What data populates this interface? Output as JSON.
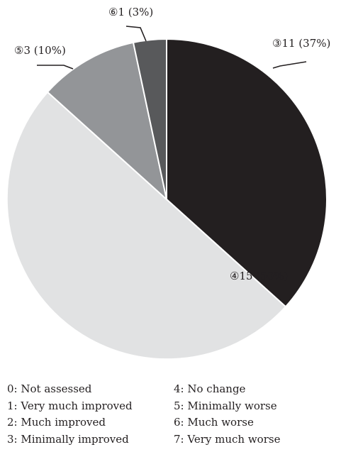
{
  "chart_data": {
    "type": "pie",
    "title": "",
    "slices": [
      {
        "category": "3",
        "value": 11,
        "percent": 37,
        "label": "③11 (37%)",
        "color": "#231f20"
      },
      {
        "category": "4",
        "value": 15,
        "percent": 50,
        "label": "④15 (50%)",
        "color": "#e1e2e3"
      },
      {
        "category": "5",
        "value": 3,
        "percent": 10,
        "label": "⑤3 (10%)",
        "color": "#939598"
      },
      {
        "category": "6",
        "value": 1,
        "percent": 3,
        "label": "⑥1 (3%)",
        "color": "#58595b"
      }
    ],
    "legend": {
      "col1": [
        "0: Not assessed",
        "1: Very much improved",
        "2: Much improved",
        "3: Minimally improved"
      ],
      "col2": [
        "4: No change",
        "5: Minimally worse",
        "6: Much worse",
        "7: Very much worse"
      ]
    }
  }
}
